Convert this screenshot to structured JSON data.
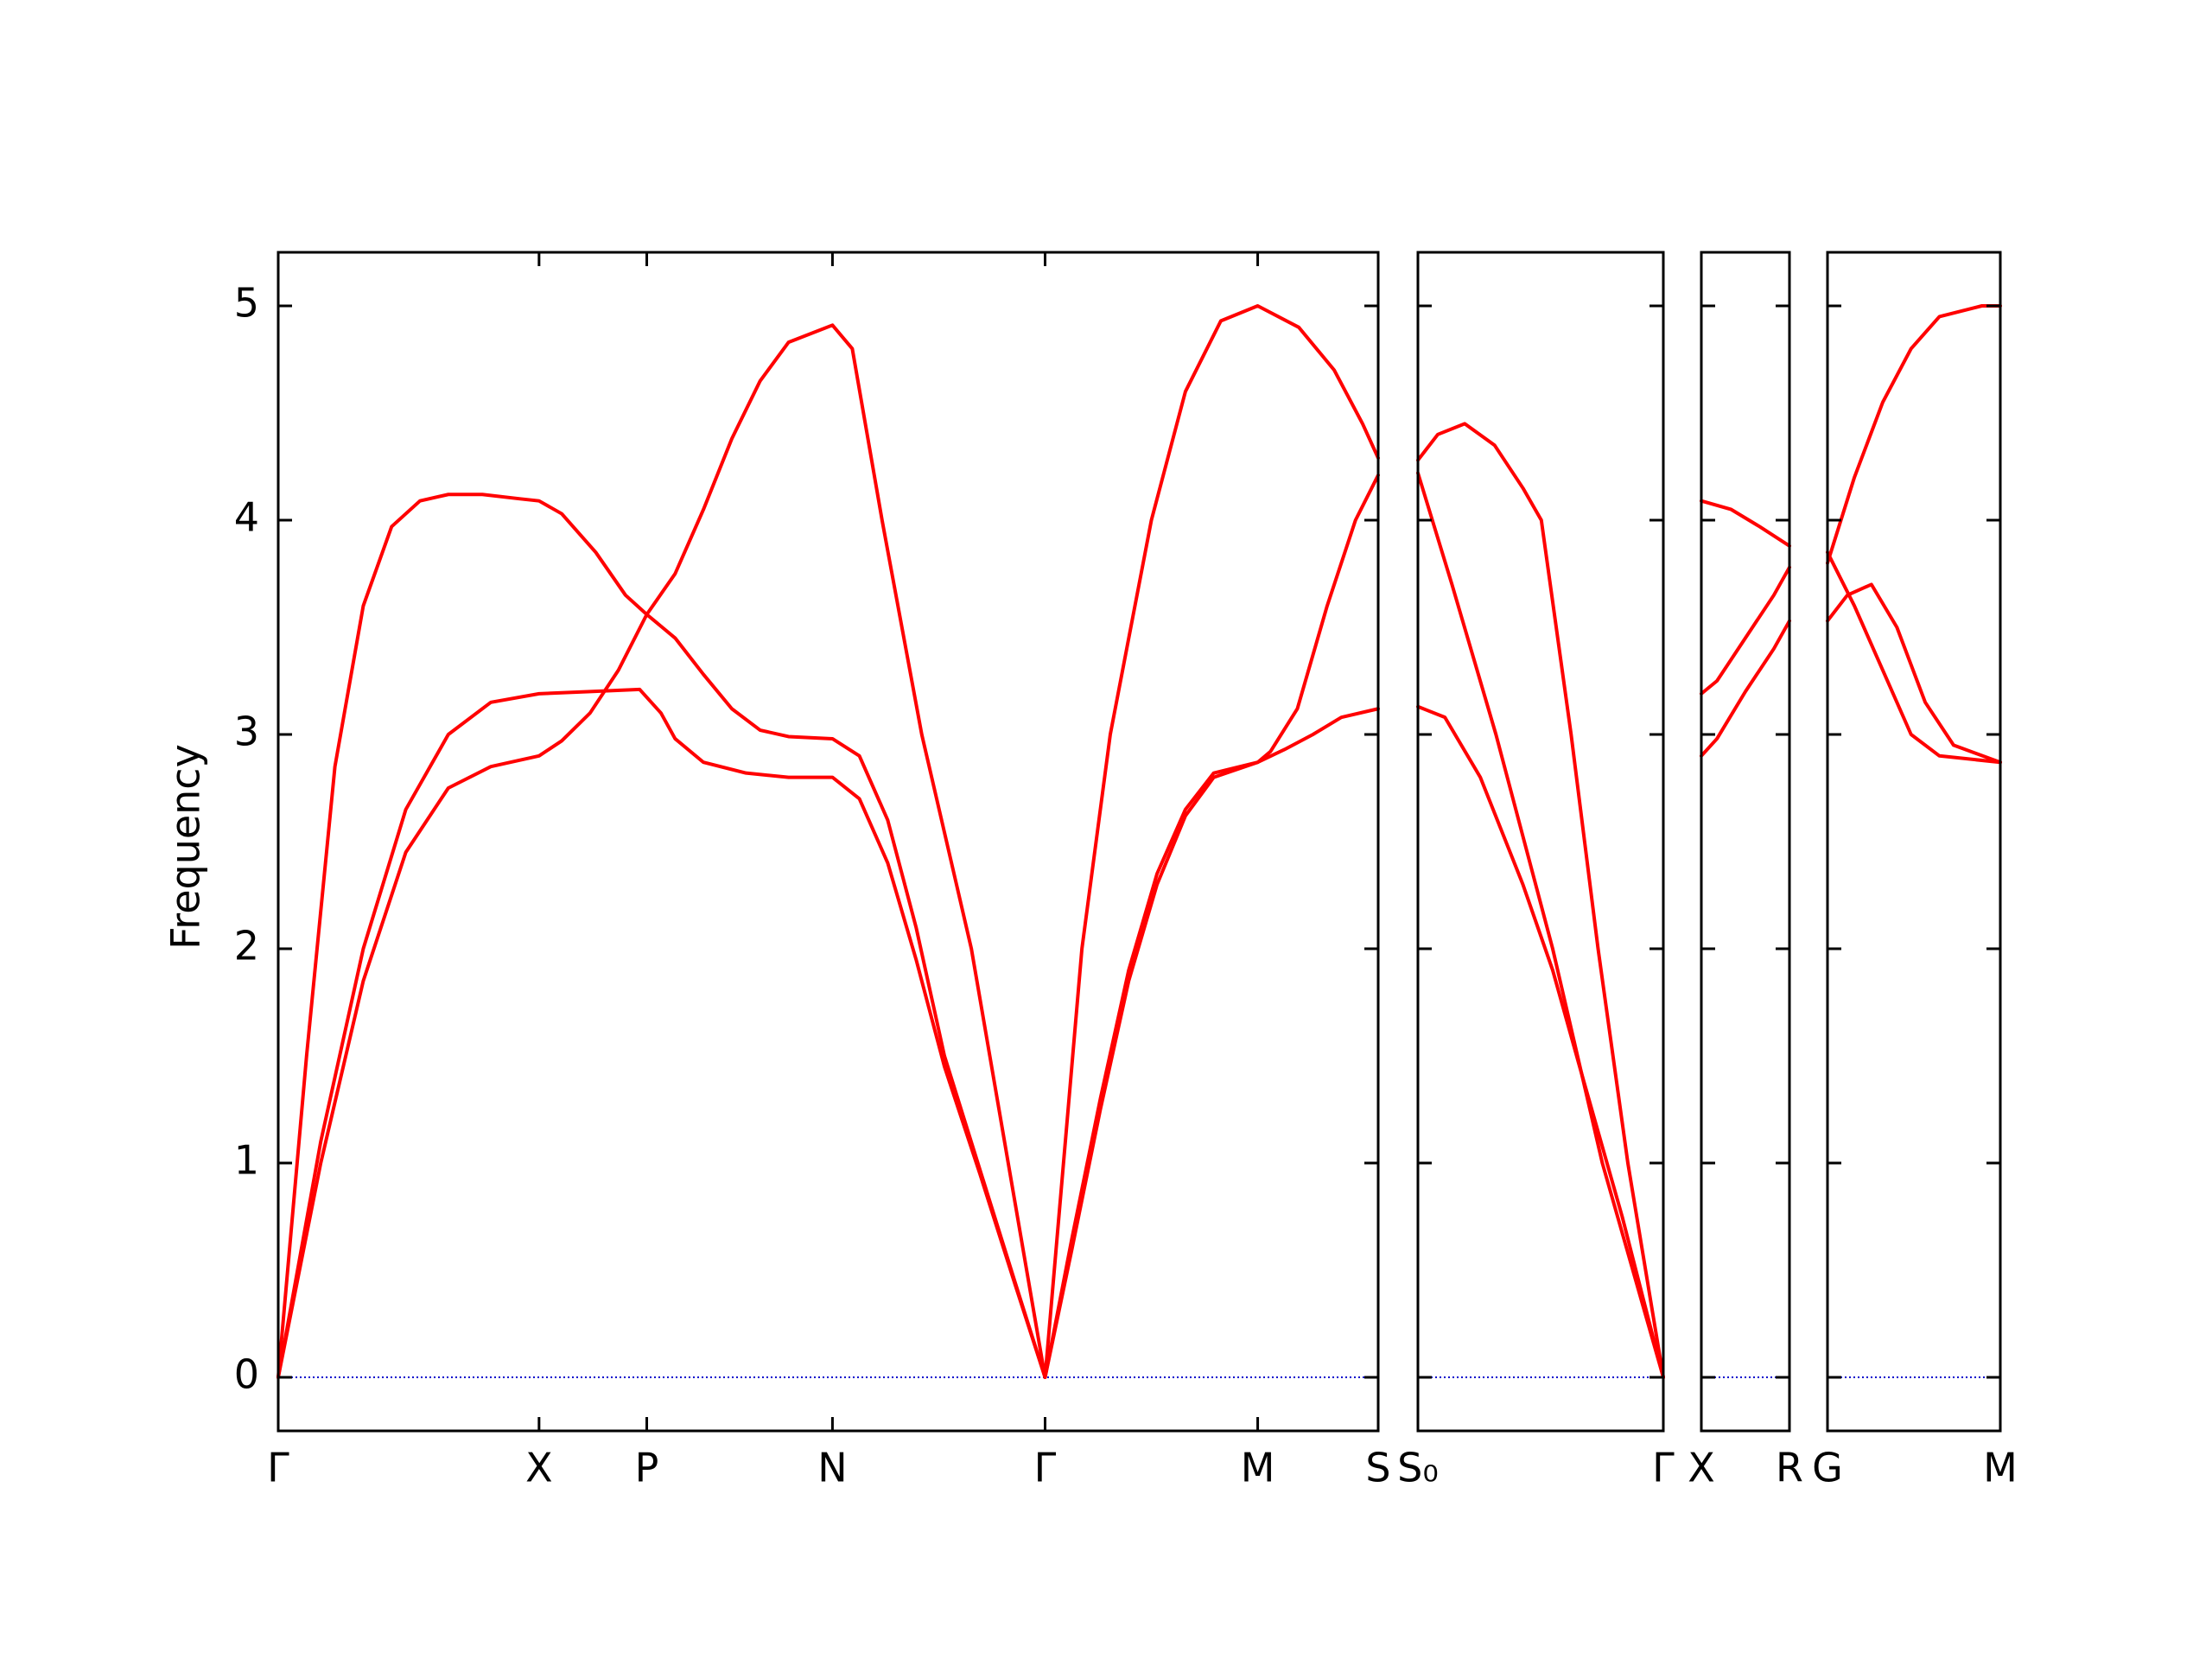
{
  "chart_data": [
    {
      "type": "line",
      "ylabel": "Frequency",
      "ylim": [
        -0.25,
        5.25
      ],
      "yticks": [
        0,
        1,
        2,
        3,
        4,
        5
      ],
      "hline": 0,
      "hline_color": "#0000cc",
      "xlim": [
        0,
        7.76
      ],
      "xticks": [
        {
          "value": 0,
          "label": "Γ"
        },
        {
          "value": 1.84,
          "label": "X"
        },
        {
          "value": 2.6,
          "label": "P"
        },
        {
          "value": 3.91,
          "label": "N"
        },
        {
          "value": 5.41,
          "label": "Γ"
        },
        {
          "value": 6.91,
          "label": "M"
        },
        {
          "value": 7.76,
          "label": "S"
        }
      ],
      "series": [
        {
          "color": "#ff0000",
          "x": [
            0,
            0.2,
            0.4,
            0.6,
            0.8,
            1.0,
            1.2,
            1.44,
            1.7,
            1.84,
            2.0,
            2.24,
            2.45,
            2.6,
            2.8,
            3.0,
            3.2,
            3.4,
            3.6,
            3.91,
            4.1,
            4.3,
            4.5,
            4.7,
            4.95,
            5.2,
            5.41,
            5.6,
            5.8,
            6.0,
            6.2,
            6.4,
            6.6,
            6.91,
            7.1,
            7.3,
            7.5,
            7.76
          ],
          "values": [
            0,
            1.5,
            2.85,
            3.6,
            3.97,
            4.09,
            4.12,
            4.12,
            4.1,
            4.09,
            4.03,
            3.85,
            3.65,
            3.56,
            3.45,
            3.28,
            3.12,
            3.02,
            2.99,
            2.98,
            2.9,
            2.6,
            2.1,
            1.5,
            0.97,
            0.44,
            0,
            0.65,
            1.3,
            1.9,
            2.35,
            2.65,
            2.82,
            2.87,
            2.93,
            3.0,
            3.08,
            3.12
          ]
        },
        {
          "color": "#ff0000",
          "x": [
            0,
            0.3,
            0.6,
            0.9,
            1.2,
            1.5,
            1.84,
            2.2,
            2.55,
            2.7,
            2.8,
            3.0,
            3.3,
            3.6,
            3.91,
            4.1,
            4.3,
            4.5,
            4.7,
            4.95,
            5.2,
            5.41,
            5.6,
            5.8,
            6.0,
            6.2,
            6.4,
            6.6,
            6.91,
            7.0,
            7.19,
            7.4,
            7.6,
            7.76
          ],
          "values": [
            0,
            1.1,
            2.0,
            2.65,
            3.0,
            3.15,
            3.19,
            3.2,
            3.21,
            3.1,
            2.98,
            2.87,
            2.82,
            2.8,
            2.8,
            2.7,
            2.4,
            1.95,
            1.45,
            0.95,
            0.43,
            0,
            0.6,
            1.25,
            1.85,
            2.3,
            2.62,
            2.8,
            2.87,
            2.92,
            3.12,
            3.6,
            4.0,
            4.21
          ]
        },
        {
          "color": "#ff0000",
          "x": [
            0,
            0.3,
            0.6,
            0.9,
            1.2,
            1.5,
            1.84,
            2.0,
            2.2,
            2.4,
            2.6,
            2.8,
            3.0,
            3.2,
            3.4,
            3.6,
            3.91,
            4.05,
            4.26,
            4.54,
            4.89,
            5.15,
            5.41,
            5.67,
            5.87,
            6.16,
            6.4,
            6.65,
            6.91,
            7.2,
            7.45,
            7.65,
            7.76
          ],
          "values": [
            0,
            1.0,
            1.85,
            2.45,
            2.75,
            2.85,
            2.9,
            2.97,
            3.1,
            3.3,
            3.56,
            3.75,
            4.05,
            4.38,
            4.65,
            4.83,
            4.91,
            4.8,
            4.0,
            3.0,
            2.0,
            1.0,
            0,
            2.0,
            3.0,
            4.0,
            4.6,
            4.93,
            5.0,
            4.9,
            4.7,
            4.45,
            4.29
          ]
        }
      ]
    },
    {
      "type": "line",
      "xlim": [
        7.76,
        9.49
      ],
      "xticks": [
        {
          "value": 7.76,
          "label": "S₀"
        },
        {
          "value": 9.49,
          "label": "Γ"
        }
      ],
      "series": [
        {
          "color": "#ff0000",
          "x": [
            7.76,
            7.9,
            8.09,
            8.3,
            8.5,
            8.63,
            8.84,
            9.03,
            9.24,
            9.49
          ],
          "values": [
            4.28,
            4.4,
            4.45,
            4.35,
            4.15,
            4.0,
            3.0,
            2.0,
            1.0,
            0
          ]
        },
        {
          "color": "#ff0000",
          "x": [
            7.76,
            8.0,
            8.31,
            8.71,
            9.06,
            9.49
          ],
          "values": [
            4.22,
            3.7,
            3.0,
            2.0,
            1.0,
            0
          ]
        },
        {
          "color": "#ff0000",
          "x": [
            7.76,
            7.95,
            8.2,
            8.5,
            8.71,
            8.9,
            9.2,
            9.49
          ],
          "values": [
            3.13,
            3.08,
            2.8,
            2.3,
            1.9,
            1.45,
            0.75,
            0
          ]
        }
      ]
    },
    {
      "type": "line",
      "xlim": [
        9.49,
        10.11
      ],
      "xticks": [
        {
          "value": 9.49,
          "label": "X"
        },
        {
          "value": 10.11,
          "label": "R"
        }
      ],
      "series": [
        {
          "color": "#ff0000",
          "x": [
            9.49,
            9.7,
            9.9,
            10.11
          ],
          "values": [
            4.09,
            4.05,
            3.97,
            3.88
          ]
        },
        {
          "color": "#ff0000",
          "x": [
            9.49,
            9.6,
            9.8,
            10.0,
            10.11
          ],
          "values": [
            3.19,
            3.25,
            3.45,
            3.65,
            3.78
          ]
        },
        {
          "color": "#ff0000",
          "x": [
            9.49,
            9.6,
            9.8,
            10.0,
            10.11
          ],
          "values": [
            2.9,
            2.98,
            3.2,
            3.4,
            3.53
          ]
        }
      ]
    },
    {
      "type": "line",
      "xlim": [
        10.11,
        11.33
      ],
      "xticks": [
        {
          "value": 10.11,
          "label": "G"
        },
        {
          "value": 11.33,
          "label": "M"
        }
      ],
      "series": [
        {
          "color": "#ff0000",
          "x": [
            10.11,
            10.3,
            10.5,
            10.7,
            10.9,
            11.2,
            11.33
          ],
          "values": [
            3.8,
            4.2,
            4.55,
            4.8,
            4.95,
            5.0,
            5.0
          ]
        },
        {
          "color": "#ff0000",
          "x": [
            10.11,
            10.3,
            10.5,
            10.7,
            10.9,
            11.33
          ],
          "values": [
            3.85,
            3.6,
            3.3,
            3.0,
            2.9,
            2.87
          ]
        },
        {
          "color": "#ff0000",
          "x": [
            10.11,
            10.25,
            10.42,
            10.6,
            10.8,
            11.0,
            11.33
          ],
          "values": [
            3.53,
            3.65,
            3.7,
            3.5,
            3.15,
            2.95,
            2.87
          ]
        }
      ]
    }
  ]
}
